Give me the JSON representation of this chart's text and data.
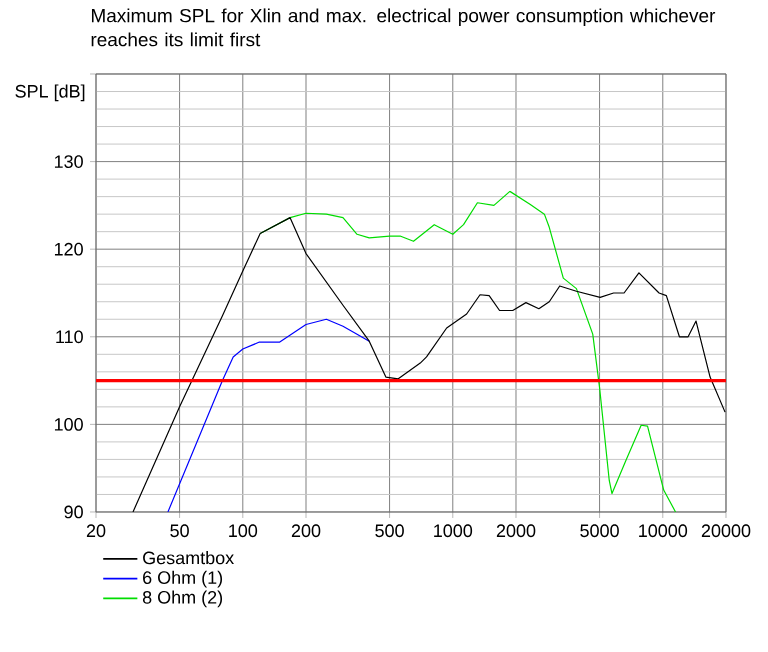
{
  "chart_data": {
    "type": "line",
    "title": "Maximum SPL for Xlin and max. electrical power consumption whichever reaches its limit first",
    "ylabel": "SPL [dB]",
    "log": "x",
    "grid": true,
    "legend": "bottom left",
    "line_style": "solid",
    "xlim": [
      20,
      20000
    ],
    "xticks": [
      20,
      50,
      100,
      200,
      500,
      1000,
      2000,
      5000,
      10000,
      20000
    ],
    "ylim": [
      90,
      140
    ],
    "yticks": [
      90,
      100,
      110,
      120,
      130,
      {
        "value": 140,
        "label": null
      }
    ],
    "ref_lines": [
      {
        "axis": "y",
        "value": 105,
        "color": "#ff0000"
      }
    ],
    "series": [
      {
        "name": "Gesamtbox",
        "color": "#000000",
        "x": [
          30,
          50,
          80,
          100,
          121,
          168,
          200,
          300,
          400,
          480,
          550,
          700,
          750,
          935,
          1164,
          1348,
          1490,
          1670,
          1930,
          2230,
          2570,
          2880,
          3230,
          3880,
          5030,
          5830,
          6540,
          7700,
          9600,
          10400,
          12000,
          13200,
          14400,
          16800,
          19800
        ],
        "values": [
          90,
          102,
          112.4,
          117.5,
          121.8,
          123.6,
          119.5,
          113.6,
          109.5,
          105.4,
          105.2,
          107,
          107.7,
          111,
          112.6,
          114.8,
          114.7,
          113,
          113,
          113.9,
          113.2,
          114,
          115.8,
          115.2,
          114.5,
          115,
          115,
          117.3,
          115,
          114.7,
          110,
          110,
          111.8,
          105.4,
          101.4
        ]
      },
      {
        "name": "6 Ohm (1)",
        "color": "#0000ff",
        "x": [
          44,
          80,
          90,
          100,
          120,
          150,
          200,
          250,
          300,
          350,
          400
        ],
        "values": [
          90,
          105,
          107.7,
          108.6,
          109.4,
          109.4,
          111.4,
          112,
          111.2,
          110.3,
          109.5
        ]
      },
      {
        "name": "8 Ohm (2)",
        "color": "#00dd00",
        "x": [
          121,
          168,
          200,
          250,
          300,
          350,
          400,
          500,
          561,
          650,
          816,
          1000,
          1125,
          1310,
          1570,
          1870,
          2340,
          2730,
          2880,
          3360,
          3880,
          4640,
          5000,
          5560,
          5730,
          6680,
          7890,
          8460,
          10100,
          11500
        ],
        "values": [
          121.8,
          123.6,
          124.1,
          124,
          123.6,
          121.7,
          121.3,
          121.5,
          121.5,
          120.9,
          122.8,
          121.7,
          122.8,
          125.3,
          125,
          126.6,
          125.1,
          124,
          122.5,
          116.7,
          115.5,
          110.3,
          104.2,
          93.6,
          92.1,
          95.9,
          99.9,
          99.8,
          92.5,
          90
        ]
      }
    ]
  }
}
